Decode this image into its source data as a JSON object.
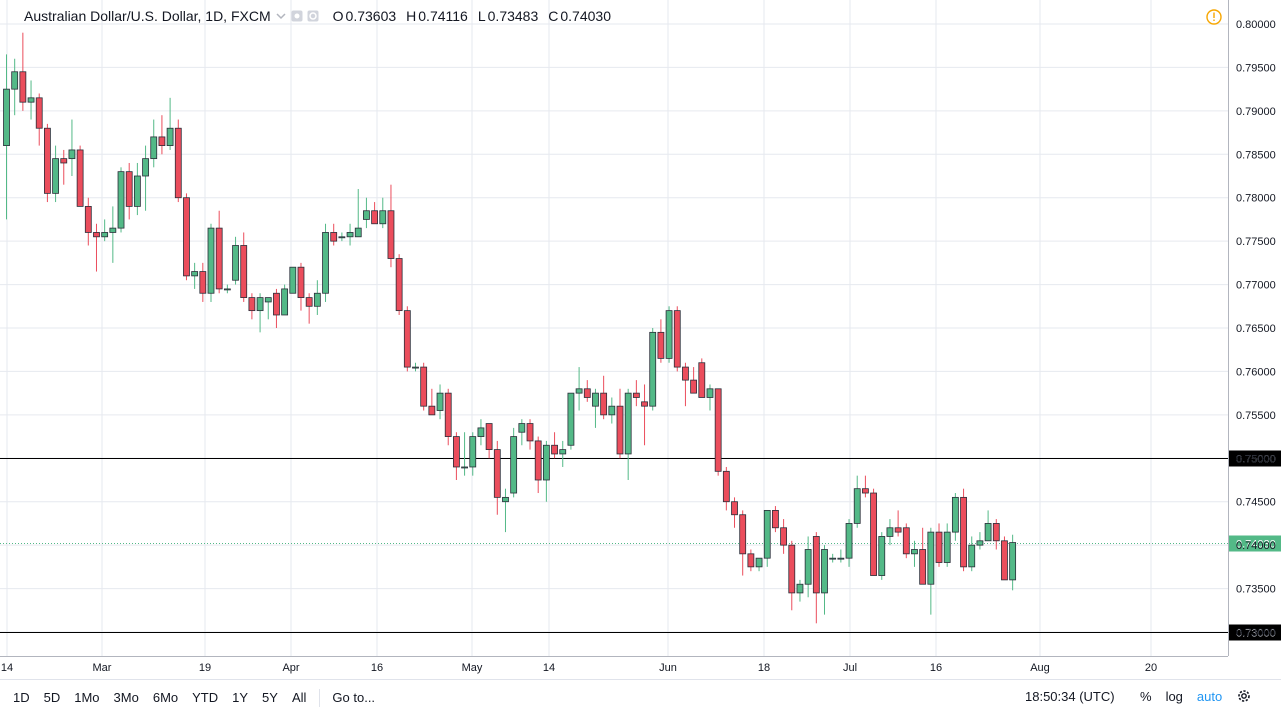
{
  "header": {
    "symbol_title": "Australian Dollar/U.S. Dollar, 1D, FXCM",
    "ohlc": [
      {
        "key": "O",
        "value": "0.73603"
      },
      {
        "key": "H",
        "value": "0.74116"
      },
      {
        "key": "L",
        "value": "0.73483"
      },
      {
        "key": "C",
        "value": "0.74030"
      }
    ]
  },
  "bottom": {
    "timeframes": [
      "1D",
      "5D",
      "1Mo",
      "3Mo",
      "6Mo",
      "YTD",
      "1Y",
      "5Y",
      "All"
    ],
    "goto_label": "Go to...",
    "clock": "18:50:34 (UTC)",
    "percent_label": "%",
    "log_label": "log",
    "auto_label": "auto"
  },
  "colors": {
    "up": "#53b987",
    "down": "#eb4d5c",
    "grid": "#e6e9ef",
    "axis_text": "#131722",
    "current_price_bg": "#53b987",
    "level_line": "#000000"
  },
  "chart_data": {
    "type": "candlestick",
    "title": "Australian Dollar/U.S. Dollar, 1D, FXCM",
    "ylim": [
      0.729,
      0.8025
    ],
    "y_ticks": [
      "0.80000",
      "0.79500",
      "0.79000",
      "0.78500",
      "0.78000",
      "0.77500",
      "0.77000",
      "0.76500",
      "0.76000",
      "0.75500",
      "0.75000",
      "0.74500",
      "0.74000",
      "0.73500",
      "0.73000"
    ],
    "x_ticks": [
      "14",
      "Mar",
      "19",
      "Apr",
      "16",
      "May",
      "14",
      "Jun",
      "18",
      "Jul",
      "16",
      "Aug",
      "20"
    ],
    "horizontal_levels": [
      {
        "value": 0.75,
        "label": "0.75000"
      },
      {
        "value": 0.73,
        "label": "0.73000"
      }
    ],
    "current_price": {
      "value": 0.7403,
      "label": "0.74030"
    },
    "candles": [
      {
        "o": 0.786,
        "h": 0.7965,
        "l": 0.7775,
        "c": 0.7925
      },
      {
        "o": 0.7925,
        "h": 0.796,
        "l": 0.7895,
        "c": 0.7945
      },
      {
        "o": 0.7945,
        "h": 0.799,
        "l": 0.79,
        "c": 0.791
      },
      {
        "o": 0.791,
        "h": 0.7935,
        "l": 0.789,
        "c": 0.7915
      },
      {
        "o": 0.7915,
        "h": 0.792,
        "l": 0.786,
        "c": 0.788
      },
      {
        "o": 0.788,
        "h": 0.7885,
        "l": 0.7795,
        "c": 0.7805
      },
      {
        "o": 0.7805,
        "h": 0.786,
        "l": 0.7795,
        "c": 0.7845
      },
      {
        "o": 0.7845,
        "h": 0.7855,
        "l": 0.7815,
        "c": 0.784
      },
      {
        "o": 0.7845,
        "h": 0.789,
        "l": 0.7825,
        "c": 0.7855
      },
      {
        "o": 0.7855,
        "h": 0.786,
        "l": 0.779,
        "c": 0.779
      },
      {
        "o": 0.779,
        "h": 0.78,
        "l": 0.7745,
        "c": 0.776
      },
      {
        "o": 0.776,
        "h": 0.777,
        "l": 0.7715,
        "c": 0.7755
      },
      {
        "o": 0.7755,
        "h": 0.7775,
        "l": 0.775,
        "c": 0.776
      },
      {
        "o": 0.776,
        "h": 0.779,
        "l": 0.7725,
        "c": 0.7765
      },
      {
        "o": 0.7765,
        "h": 0.7835,
        "l": 0.776,
        "c": 0.783
      },
      {
        "o": 0.783,
        "h": 0.784,
        "l": 0.7775,
        "c": 0.779
      },
      {
        "o": 0.779,
        "h": 0.784,
        "l": 0.778,
        "c": 0.7825
      },
      {
        "o": 0.7825,
        "h": 0.786,
        "l": 0.7785,
        "c": 0.7845
      },
      {
        "o": 0.7845,
        "h": 0.789,
        "l": 0.7835,
        "c": 0.787
      },
      {
        "o": 0.787,
        "h": 0.7895,
        "l": 0.785,
        "c": 0.786
      },
      {
        "o": 0.786,
        "h": 0.7915,
        "l": 0.7855,
        "c": 0.788
      },
      {
        "o": 0.788,
        "h": 0.789,
        "l": 0.7795,
        "c": 0.78
      },
      {
        "o": 0.78,
        "h": 0.7805,
        "l": 0.7705,
        "c": 0.771
      },
      {
        "o": 0.771,
        "h": 0.7725,
        "l": 0.7695,
        "c": 0.7715
      },
      {
        "o": 0.7715,
        "h": 0.7725,
        "l": 0.768,
        "c": 0.769
      },
      {
        "o": 0.769,
        "h": 0.777,
        "l": 0.768,
        "c": 0.7765
      },
      {
        "o": 0.7765,
        "h": 0.7785,
        "l": 0.769,
        "c": 0.7695
      },
      {
        "o": 0.7695,
        "h": 0.77,
        "l": 0.769,
        "c": 0.7695
      },
      {
        "o": 0.7705,
        "h": 0.7755,
        "l": 0.77,
        "c": 0.7745
      },
      {
        "o": 0.7745,
        "h": 0.776,
        "l": 0.768,
        "c": 0.7685
      },
      {
        "o": 0.7685,
        "h": 0.769,
        "l": 0.766,
        "c": 0.767
      },
      {
        "o": 0.767,
        "h": 0.769,
        "l": 0.7645,
        "c": 0.7685
      },
      {
        "o": 0.768,
        "h": 0.7685,
        "l": 0.766,
        "c": 0.7685
      },
      {
        "o": 0.769,
        "h": 0.7695,
        "l": 0.765,
        "c": 0.7665
      },
      {
        "o": 0.7665,
        "h": 0.77,
        "l": 0.7665,
        "c": 0.7695
      },
      {
        "o": 0.769,
        "h": 0.772,
        "l": 0.769,
        "c": 0.772
      },
      {
        "o": 0.772,
        "h": 0.7725,
        "l": 0.767,
        "c": 0.7685
      },
      {
        "o": 0.7685,
        "h": 0.769,
        "l": 0.7655,
        "c": 0.7675
      },
      {
        "o": 0.7675,
        "h": 0.7705,
        "l": 0.7665,
        "c": 0.769
      },
      {
        "o": 0.769,
        "h": 0.777,
        "l": 0.768,
        "c": 0.776
      },
      {
        "o": 0.776,
        "h": 0.777,
        "l": 0.7745,
        "c": 0.775
      },
      {
        "o": 0.7755,
        "h": 0.776,
        "l": 0.775,
        "c": 0.7755
      },
      {
        "o": 0.7755,
        "h": 0.777,
        "l": 0.7745,
        "c": 0.776
      },
      {
        "o": 0.7755,
        "h": 0.781,
        "l": 0.7755,
        "c": 0.7765
      },
      {
        "o": 0.7775,
        "h": 0.78,
        "l": 0.7765,
        "c": 0.7785
      },
      {
        "o": 0.7785,
        "h": 0.7795,
        "l": 0.777,
        "c": 0.777
      },
      {
        "o": 0.777,
        "h": 0.78,
        "l": 0.7765,
        "c": 0.7785
      },
      {
        "o": 0.7785,
        "h": 0.7815,
        "l": 0.772,
        "c": 0.773
      },
      {
        "o": 0.773,
        "h": 0.7735,
        "l": 0.7665,
        "c": 0.767
      },
      {
        "o": 0.767,
        "h": 0.7675,
        "l": 0.76,
        "c": 0.7605
      },
      {
        "o": 0.7605,
        "h": 0.761,
        "l": 0.76,
        "c": 0.7605
      },
      {
        "o": 0.7605,
        "h": 0.761,
        "l": 0.7555,
        "c": 0.756
      },
      {
        "o": 0.756,
        "h": 0.758,
        "l": 0.755,
        "c": 0.755
      },
      {
        "o": 0.7555,
        "h": 0.7585,
        "l": 0.7545,
        "c": 0.7575
      },
      {
        "o": 0.7575,
        "h": 0.758,
        "l": 0.7515,
        "c": 0.7525
      },
      {
        "o": 0.7525,
        "h": 0.753,
        "l": 0.7475,
        "c": 0.749
      },
      {
        "o": 0.749,
        "h": 0.753,
        "l": 0.748,
        "c": 0.749
      },
      {
        "o": 0.749,
        "h": 0.753,
        "l": 0.748,
        "c": 0.7525
      },
      {
        "o": 0.7525,
        "h": 0.7545,
        "l": 0.7515,
        "c": 0.7535
      },
      {
        "o": 0.754,
        "h": 0.754,
        "l": 0.75,
        "c": 0.751
      },
      {
        "o": 0.751,
        "h": 0.752,
        "l": 0.7435,
        "c": 0.7455
      },
      {
        "o": 0.745,
        "h": 0.7465,
        "l": 0.7415,
        "c": 0.7455
      },
      {
        "o": 0.746,
        "h": 0.7535,
        "l": 0.7455,
        "c": 0.7525
      },
      {
        "o": 0.753,
        "h": 0.7545,
        "l": 0.7515,
        "c": 0.754
      },
      {
        "o": 0.754,
        "h": 0.7545,
        "l": 0.751,
        "c": 0.752
      },
      {
        "o": 0.752,
        "h": 0.7525,
        "l": 0.746,
        "c": 0.7475
      },
      {
        "o": 0.7475,
        "h": 0.752,
        "l": 0.745,
        "c": 0.7515
      },
      {
        "o": 0.7515,
        "h": 0.753,
        "l": 0.75,
        "c": 0.7505
      },
      {
        "o": 0.7505,
        "h": 0.752,
        "l": 0.749,
        "c": 0.751
      },
      {
        "o": 0.7515,
        "h": 0.757,
        "l": 0.751,
        "c": 0.7575
      },
      {
        "o": 0.7575,
        "h": 0.7605,
        "l": 0.7555,
        "c": 0.758
      },
      {
        "o": 0.758,
        "h": 0.759,
        "l": 0.7565,
        "c": 0.757
      },
      {
        "o": 0.756,
        "h": 0.758,
        "l": 0.7535,
        "c": 0.7575
      },
      {
        "o": 0.7575,
        "h": 0.7595,
        "l": 0.7545,
        "c": 0.755
      },
      {
        "o": 0.755,
        "h": 0.757,
        "l": 0.754,
        "c": 0.756
      },
      {
        "o": 0.756,
        "h": 0.758,
        "l": 0.75,
        "c": 0.7505
      },
      {
        "o": 0.7505,
        "h": 0.758,
        "l": 0.7475,
        "c": 0.7575
      },
      {
        "o": 0.7575,
        "h": 0.759,
        "l": 0.756,
        "c": 0.757
      },
      {
        "o": 0.7565,
        "h": 0.7585,
        "l": 0.7515,
        "c": 0.756
      },
      {
        "o": 0.756,
        "h": 0.765,
        "l": 0.7555,
        "c": 0.7645
      },
      {
        "o": 0.7645,
        "h": 0.766,
        "l": 0.761,
        "c": 0.7615
      },
      {
        "o": 0.7615,
        "h": 0.7675,
        "l": 0.761,
        "c": 0.767
      },
      {
        "o": 0.767,
        "h": 0.7675,
        "l": 0.76,
        "c": 0.7605
      },
      {
        "o": 0.7605,
        "h": 0.761,
        "l": 0.756,
        "c": 0.759
      },
      {
        "o": 0.759,
        "h": 0.7605,
        "l": 0.7575,
        "c": 0.7575
      },
      {
        "o": 0.761,
        "h": 0.7615,
        "l": 0.757,
        "c": 0.757
      },
      {
        "o": 0.757,
        "h": 0.7585,
        "l": 0.7555,
        "c": 0.758
      },
      {
        "o": 0.758,
        "h": 0.758,
        "l": 0.748,
        "c": 0.7485
      },
      {
        "o": 0.7485,
        "h": 0.749,
        "l": 0.744,
        "c": 0.745
      },
      {
        "o": 0.745,
        "h": 0.7455,
        "l": 0.742,
        "c": 0.7435
      },
      {
        "o": 0.7435,
        "h": 0.744,
        "l": 0.7365,
        "c": 0.739
      },
      {
        "o": 0.739,
        "h": 0.7395,
        "l": 0.737,
        "c": 0.7375
      },
      {
        "o": 0.7375,
        "h": 0.7385,
        "l": 0.737,
        "c": 0.7385
      },
      {
        "o": 0.7385,
        "h": 0.744,
        "l": 0.7375,
        "c": 0.744
      },
      {
        "o": 0.744,
        "h": 0.7445,
        "l": 0.7415,
        "c": 0.742
      },
      {
        "o": 0.742,
        "h": 0.743,
        "l": 0.739,
        "c": 0.74
      },
      {
        "o": 0.74,
        "h": 0.7405,
        "l": 0.7325,
        "c": 0.7345
      },
      {
        "o": 0.7345,
        "h": 0.736,
        "l": 0.7335,
        "c": 0.7355
      },
      {
        "o": 0.7355,
        "h": 0.741,
        "l": 0.734,
        "c": 0.7395
      },
      {
        "o": 0.741,
        "h": 0.7415,
        "l": 0.731,
        "c": 0.7345
      },
      {
        "o": 0.7345,
        "h": 0.74,
        "l": 0.732,
        "c": 0.7395
      },
      {
        "o": 0.7385,
        "h": 0.739,
        "l": 0.738,
        "c": 0.7385
      },
      {
        "o": 0.7385,
        "h": 0.7395,
        "l": 0.738,
        "c": 0.7385
      },
      {
        "o": 0.7385,
        "h": 0.743,
        "l": 0.7375,
        "c": 0.7425
      },
      {
        "o": 0.7425,
        "h": 0.748,
        "l": 0.742,
        "c": 0.7465
      },
      {
        "o": 0.7465,
        "h": 0.748,
        "l": 0.7455,
        "c": 0.746
      },
      {
        "o": 0.746,
        "h": 0.7465,
        "l": 0.7365,
        "c": 0.7365
      },
      {
        "o": 0.7365,
        "h": 0.7415,
        "l": 0.736,
        "c": 0.741
      },
      {
        "o": 0.741,
        "h": 0.743,
        "l": 0.74,
        "c": 0.742
      },
      {
        "o": 0.742,
        "h": 0.744,
        "l": 0.741,
        "c": 0.7415
      },
      {
        "o": 0.742,
        "h": 0.7425,
        "l": 0.7385,
        "c": 0.739
      },
      {
        "o": 0.739,
        "h": 0.7405,
        "l": 0.7375,
        "c": 0.7395
      },
      {
        "o": 0.7395,
        "h": 0.742,
        "l": 0.7355,
        "c": 0.7355
      },
      {
        "o": 0.7355,
        "h": 0.742,
        "l": 0.732,
        "c": 0.7415
      },
      {
        "o": 0.7415,
        "h": 0.7425,
        "l": 0.7375,
        "c": 0.738
      },
      {
        "o": 0.738,
        "h": 0.7425,
        "l": 0.7375,
        "c": 0.7415
      },
      {
        "o": 0.7415,
        "h": 0.746,
        "l": 0.7405,
        "c": 0.7455
      },
      {
        "o": 0.7455,
        "h": 0.7465,
        "l": 0.737,
        "c": 0.7375
      },
      {
        "o": 0.7375,
        "h": 0.741,
        "l": 0.737,
        "c": 0.74
      },
      {
        "o": 0.74,
        "h": 0.7415,
        "l": 0.7395,
        "c": 0.7405
      },
      {
        "o": 0.7405,
        "h": 0.744,
        "l": 0.7405,
        "c": 0.7425
      },
      {
        "o": 0.7425,
        "h": 0.743,
        "l": 0.7395,
        "c": 0.7405
      },
      {
        "o": 0.7405,
        "h": 0.741,
        "l": 0.736,
        "c": 0.736
      },
      {
        "o": 0.736,
        "h": 0.7412,
        "l": 0.7348,
        "c": 0.7403
      }
    ]
  }
}
